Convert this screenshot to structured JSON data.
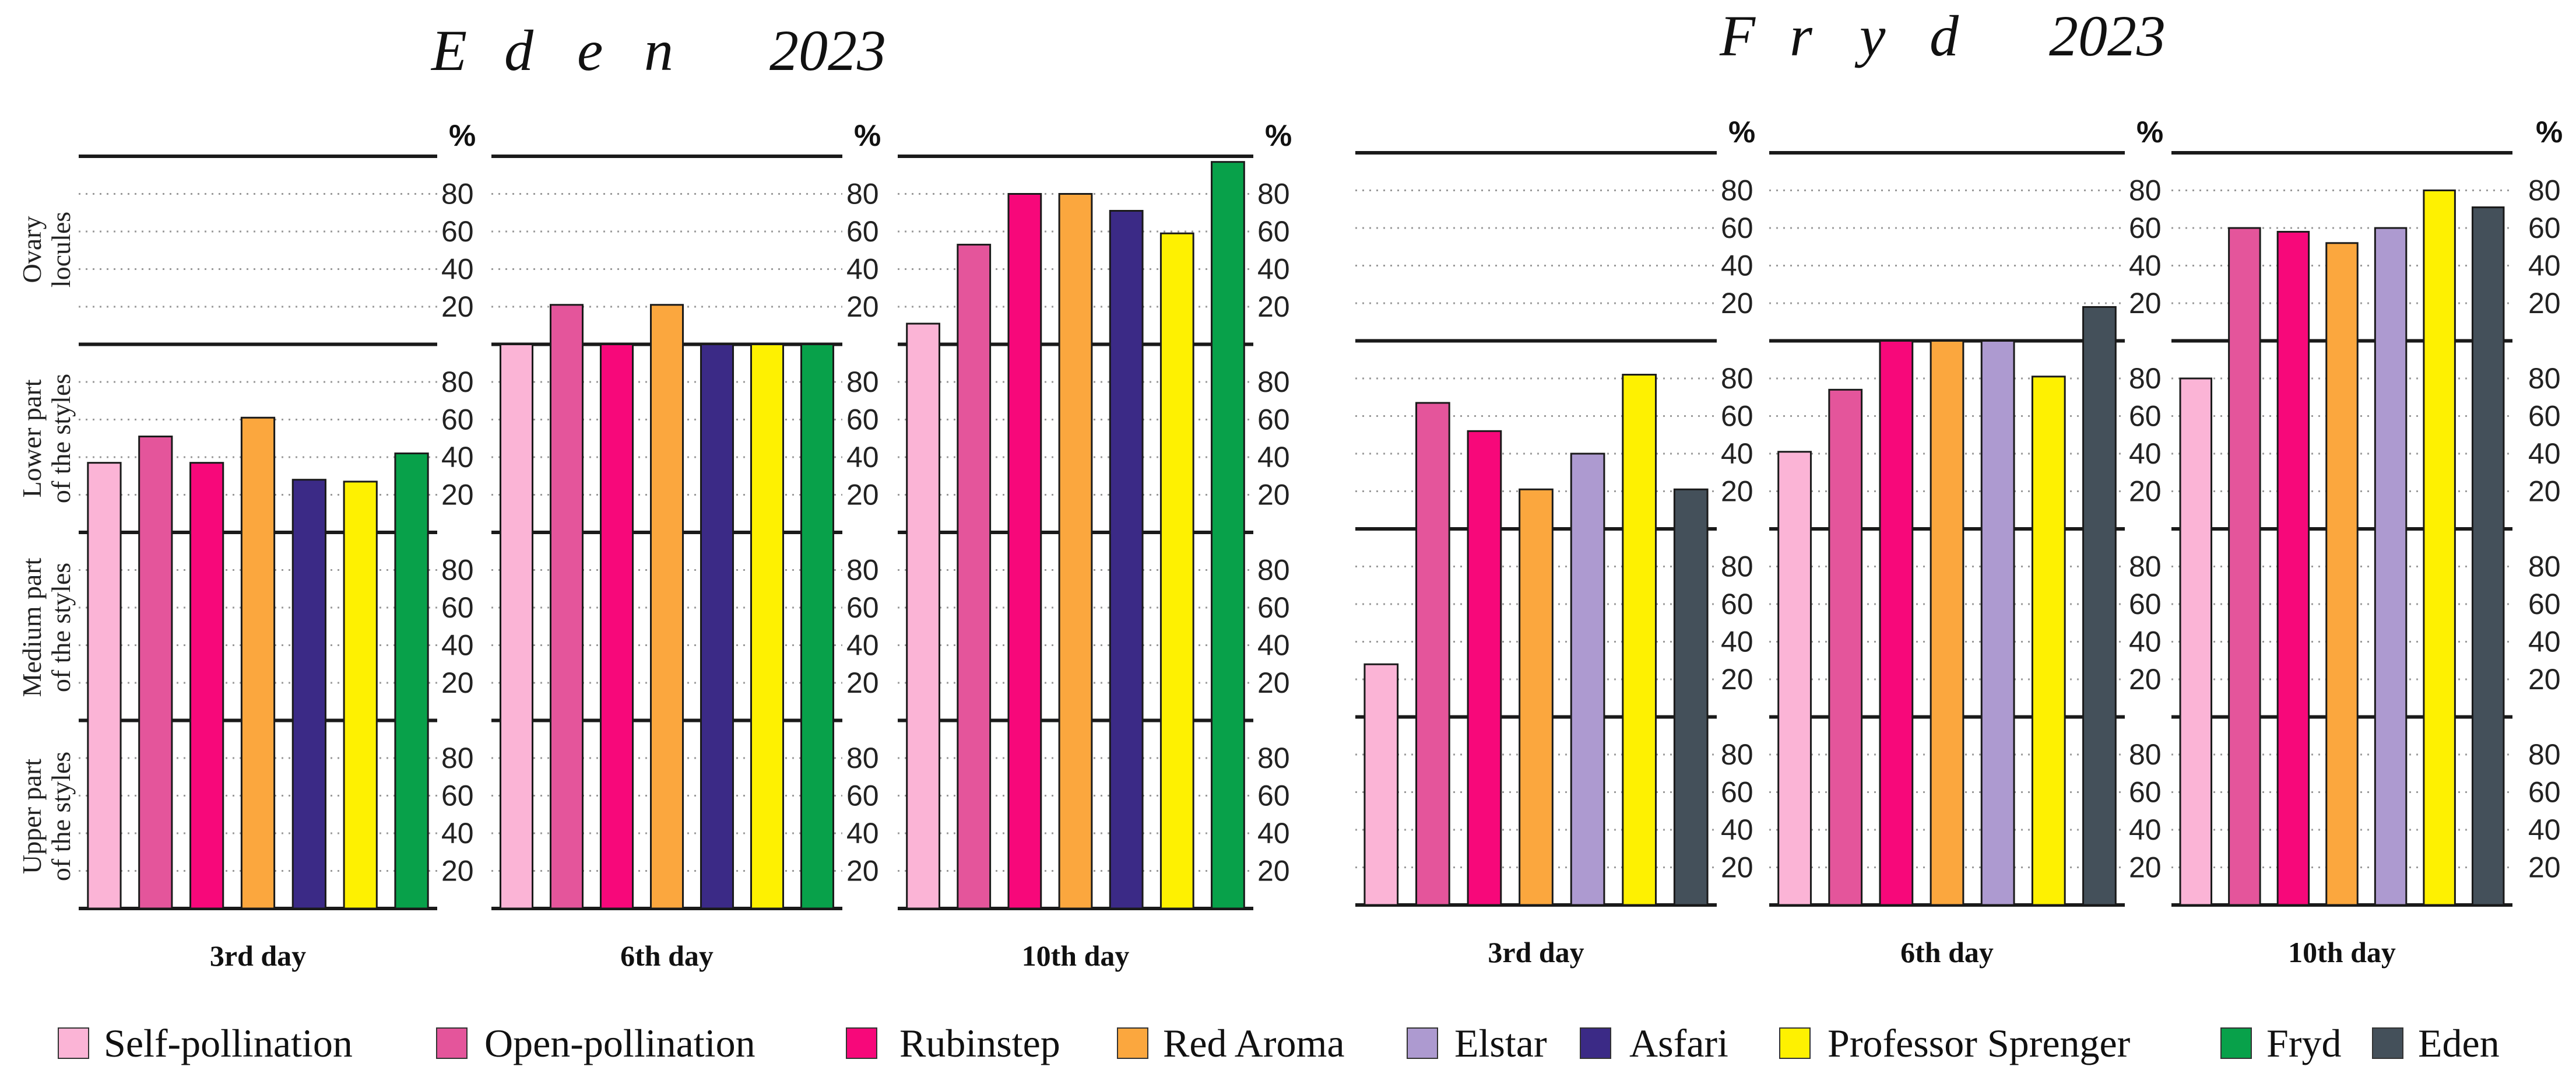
{
  "chart_data": [
    {
      "type": "bar",
      "title_letters": [
        "E",
        "d",
        "e",
        "n"
      ],
      "title_year": "2023",
      "y_unit": "%",
      "ylim": [
        0,
        100
      ],
      "y_ticks": [
        "20",
        "40",
        "60",
        "80"
      ],
      "rows": [
        "Ovary locules",
        "Lower part of the styles",
        "Medium part of the styles",
        "Upper part of the styles"
      ],
      "row_label_lines": [
        [
          "Ovary",
          "locules"
        ],
        [
          "Lower part",
          "of the styles"
        ],
        [
          "Medium part",
          "of the styles"
        ],
        [
          "Upper part",
          "of the styles"
        ]
      ],
      "series": [
        "Self-pollination",
        "Open-pollination",
        "Rubinstep",
        "Red Aroma",
        "Asfari",
        "Professor Sprenger",
        "Fryd"
      ],
      "panels": [
        {
          "day": "3rd day",
          "values": [
            [
              0,
              0,
              0,
              0,
              0,
              0,
              0
            ],
            [
              37,
              51,
              37,
              61,
              28,
              27,
              42
            ],
            [
              100,
              100,
              100,
              100,
              100,
              100,
              100
            ],
            [
              100,
              100,
              100,
              100,
              100,
              100,
              100
            ]
          ]
        },
        {
          "day": "6th day",
          "values": [
            [
              0,
              21,
              0,
              21,
              0,
              0,
              0
            ],
            [
              100,
              100,
              100,
              100,
              100,
              100,
              100
            ],
            [
              100,
              100,
              100,
              100,
              100,
              100,
              100
            ],
            [
              100,
              100,
              100,
              100,
              100,
              100,
              100
            ]
          ]
        },
        {
          "day": "10th day",
          "values": [
            [
              11,
              53,
              80,
              80,
              71,
              59,
              97
            ],
            [
              100,
              100,
              100,
              100,
              100,
              100,
              100
            ],
            [
              100,
              100,
              100,
              100,
              100,
              100,
              100
            ],
            [
              100,
              100,
              100,
              100,
              100,
              100,
              100
            ]
          ]
        }
      ]
    },
    {
      "type": "bar",
      "title_letters": [
        "F",
        "r",
        "y",
        "d"
      ],
      "title_year": "2023",
      "y_unit": "%",
      "ylim": [
        0,
        100
      ],
      "y_ticks": [
        "20",
        "40",
        "60",
        "80"
      ],
      "rows": [
        "Ovary locules",
        "Lower part of the styles",
        "Medium part of the styles",
        "Upper part of the styles"
      ],
      "series": [
        "Self-pollination",
        "Open-pollination",
        "Rubinstep",
        "Red Aroma",
        "Elstar",
        "Professor Sprenger",
        "Eden"
      ],
      "panels": [
        {
          "day": "3rd day",
          "values": [
            [
              0,
              0,
              0,
              0,
              0,
              0,
              0
            ],
            [
              0,
              67,
              52,
              21,
              40,
              82,
              21
            ],
            [
              28,
              100,
              100,
              100,
              100,
              100,
              100
            ],
            [
              100,
              100,
              100,
              100,
              100,
              100,
              100
            ]
          ]
        },
        {
          "day": "6th day",
          "values": [
            [
              0,
              0,
              0,
              0,
              0,
              0,
              18
            ],
            [
              41,
              74,
              100,
              100,
              100,
              81,
              100
            ],
            [
              100,
              100,
              100,
              100,
              100,
              100,
              100
            ],
            [
              100,
              100,
              100,
              100,
              100,
              100,
              100
            ]
          ]
        },
        {
          "day": "10th day",
          "values": [
            [
              0,
              60,
              58,
              52,
              60,
              80,
              71
            ],
            [
              80,
              100,
              100,
              100,
              100,
              100,
              100
            ],
            [
              100,
              100,
              100,
              100,
              100,
              100,
              100
            ],
            [
              100,
              100,
              100,
              100,
              100,
              100,
              100
            ]
          ]
        }
      ]
    }
  ],
  "legend": [
    {
      "label": "Self-pollination",
      "color": "#fbb4d6"
    },
    {
      "label": "Open-pollination",
      "color": "#e4559b"
    },
    {
      "label": "Rubinstep",
      "color": "#f7087a"
    },
    {
      "label": "Red Aroma",
      "color": "#fba73e"
    },
    {
      "label": "Elstar",
      "color": "#ad9ad0"
    },
    {
      "label": "Asfari",
      "color": "#3b2a86"
    },
    {
      "label": "Professor Sprenger",
      "color": "#fef101"
    },
    {
      "label": "Fryd",
      "color": "#08a14a"
    },
    {
      "label": "Eden",
      "color": "#44505a"
    }
  ]
}
